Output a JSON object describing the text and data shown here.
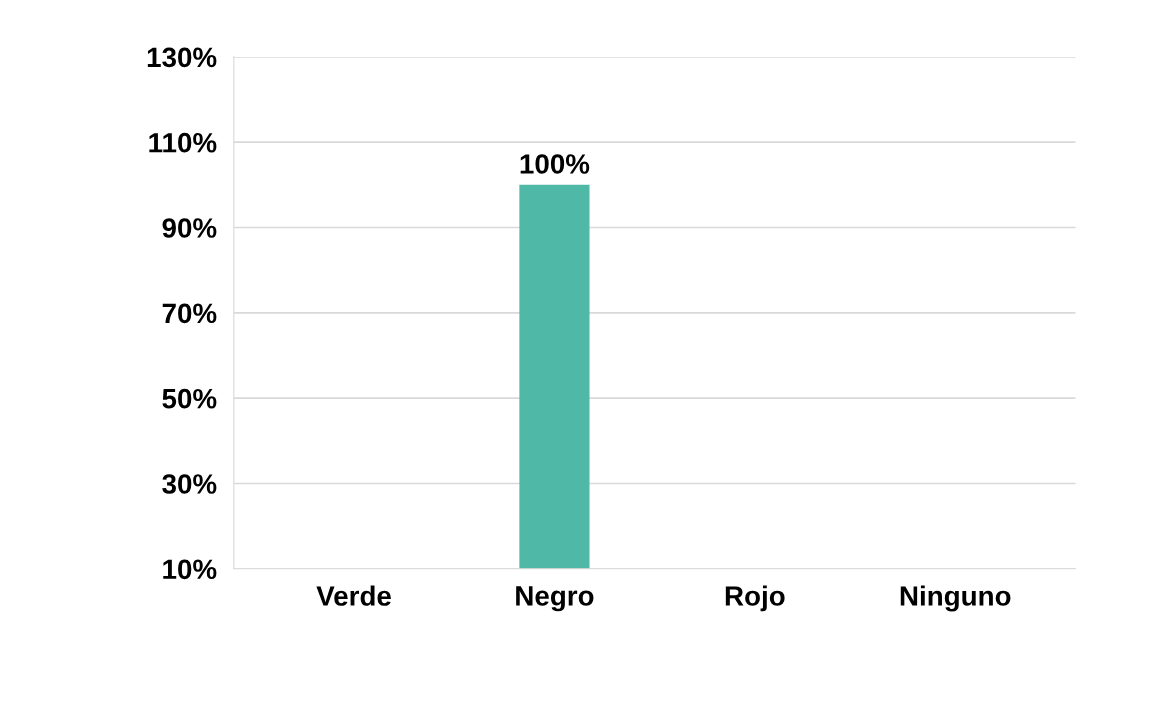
{
  "chart_data": {
    "type": "bar",
    "categories": [
      "Verde",
      "Negro",
      "Rojo",
      "Ninguno"
    ],
    "values": [
      null,
      100,
      null,
      null
    ],
    "value_labels": [
      null,
      "100%",
      null,
      null
    ],
    "color": "#4fb8a6",
    "ylim": [
      10,
      130
    ],
    "yticks": [
      {
        "value": 10,
        "label": "10%"
      },
      {
        "value": 30,
        "label": "30%"
      },
      {
        "value": 50,
        "label": "50%"
      },
      {
        "value": 70,
        "label": "70%"
      },
      {
        "value": 90,
        "label": "90%"
      },
      {
        "value": 110,
        "label": "110%"
      },
      {
        "value": 130,
        "label": "130%"
      }
    ],
    "grid": "y"
  }
}
